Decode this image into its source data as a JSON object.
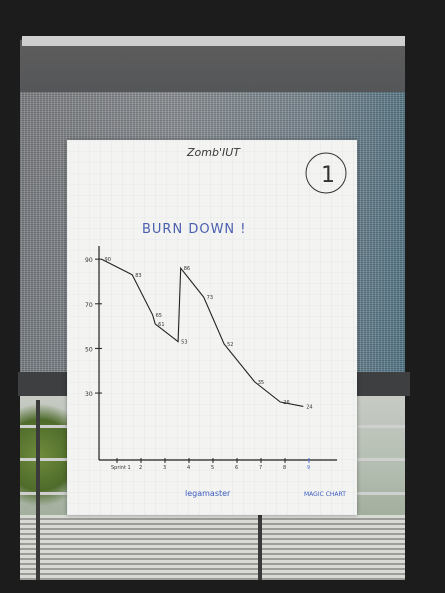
{
  "poster": {
    "title": "Zomb'IUT",
    "subtitle": "BURN DOWN !",
    "corner_number": "1",
    "brand_left": "legamaster",
    "brand_right": "MAGIC CHART"
  },
  "chart_data": {
    "type": "line",
    "title": "BURN DOWN !",
    "y_ticks": [
      "30",
      "50",
      "70",
      "90"
    ],
    "x_ticks": [
      "Sprint 1",
      "2",
      "3",
      "4",
      "5",
      "6",
      "7",
      "8",
      "9"
    ],
    "series": [
      {
        "points": [
          {
            "x": 0,
            "y": 90,
            "label": "90"
          },
          {
            "x": 1.2,
            "y": 83,
            "label": "83"
          },
          {
            "x": 2,
            "y": 65,
            "label": "65"
          },
          {
            "x": 2.1,
            "y": 61,
            "label": "61"
          },
          {
            "x": 3,
            "y": 53,
            "label": "53"
          },
          {
            "x": 3.1,
            "y": 86,
            "label": "86"
          },
          {
            "x": 4,
            "y": 73,
            "label": "73"
          },
          {
            "x": 4.8,
            "y": 52,
            "label": "52"
          },
          {
            "x": 6,
            "y": 35,
            "label": "35"
          },
          {
            "x": 7,
            "y": 26,
            "label": "26"
          },
          {
            "x": 7.9,
            "y": 24,
            "label": "24"
          }
        ]
      }
    ],
    "ylim": [
      0,
      95
    ],
    "xlim": [
      -0.1,
      9.3
    ]
  }
}
